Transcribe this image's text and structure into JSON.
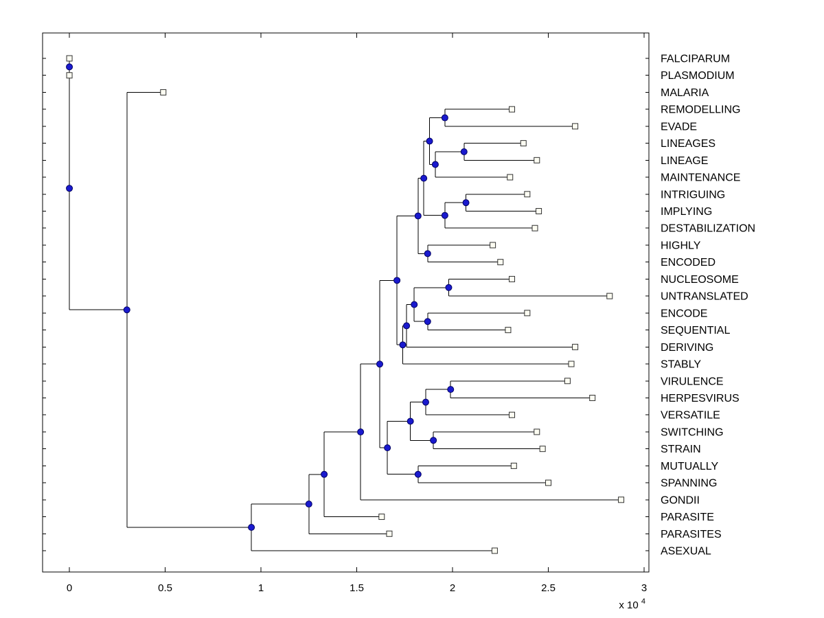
{
  "window": {
    "background": "#ffffff"
  },
  "styles": {
    "background": "#ffffff",
    "branch_line": "#000000",
    "axis_color": "#000000",
    "text_color": "#000000",
    "node_marker_fill": "#1a1ace",
    "node_marker_edge": "#000060",
    "leaf_marker_fill": "#fdfdf2",
    "leaf_marker_edge": "#303030"
  },
  "chart_data": {
    "type": "dendrogram",
    "title": "",
    "subtitle": "",
    "orientation": "root-left-leaves-right",
    "legend": "none",
    "grid": false,
    "x_axis": {
      "limits": [
        -0.14,
        3.025
      ],
      "ticks": [
        0,
        0.5,
        1,
        1.5,
        2,
        2.5,
        3
      ],
      "tick_labels": [
        "0",
        "0.5",
        "1",
        "1.5",
        "2",
        "2.5",
        "3"
      ],
      "exponent_base": "x 10",
      "exponent_power": "4",
      "units_multiplier": 10000
    },
    "leaves": [
      {
        "name": "FALCIPARUM",
        "x": 0.0
      },
      {
        "name": "PLASMODIUM",
        "x": 0.0
      },
      {
        "name": "MALARIA",
        "x": 0.49
      },
      {
        "name": "REMODELLING",
        "x": 2.31
      },
      {
        "name": "EVADE",
        "x": 2.64
      },
      {
        "name": "LINEAGES",
        "x": 2.37
      },
      {
        "name": "LINEAGE",
        "x": 2.44
      },
      {
        "name": "MAINTENANCE",
        "x": 2.3
      },
      {
        "name": "INTRIGUING",
        "x": 2.39
      },
      {
        "name": "IMPLYING",
        "x": 2.45
      },
      {
        "name": "DESTABILIZATION",
        "x": 2.43
      },
      {
        "name": "HIGHLY",
        "x": 2.21
      },
      {
        "name": "ENCODED",
        "x": 2.25
      },
      {
        "name": "NUCLEOSOME",
        "x": 2.31
      },
      {
        "name": "UNTRANSLATED",
        "x": 2.82
      },
      {
        "name": "ENCODE",
        "x": 2.39
      },
      {
        "name": "SEQUENTIAL",
        "x": 2.29
      },
      {
        "name": "DERIVING",
        "x": 2.64
      },
      {
        "name": "STABLY",
        "x": 2.62
      },
      {
        "name": "VIRULENCE",
        "x": 2.6
      },
      {
        "name": "HERPESVIRUS",
        "x": 2.73
      },
      {
        "name": "VERSATILE",
        "x": 2.31
      },
      {
        "name": "SWITCHING",
        "x": 2.44
      },
      {
        "name": "STRAIN",
        "x": 2.47
      },
      {
        "name": "MUTUALLY",
        "x": 2.32
      },
      {
        "name": "SPANNING",
        "x": 2.5
      },
      {
        "name": "GONDII",
        "x": 2.88
      },
      {
        "name": "PARASITE",
        "x": 1.63
      },
      {
        "name": "PARASITES",
        "x": 1.67
      },
      {
        "name": "ASEXUAL",
        "x": 2.22
      }
    ],
    "tree": {
      "x": 0.0,
      "children": [
        {
          "x": 0.0,
          "children": [
            "FALCIPARUM",
            "PLASMODIUM"
          ]
        },
        {
          "x": 0.3,
          "children": [
            "MALARIA",
            {
              "x": 0.95,
              "children": [
                {
                  "x": 1.25,
                  "children": [
                    {
                      "x": 1.33,
                      "children": [
                        {
                          "x": 1.52,
                          "children": [
                            {
                              "x": 1.62,
                              "children": [
                                {
                                  "x": 1.71,
                                  "children": [
                                    {
                                      "x": 1.82,
                                      "children": [
                                        {
                                          "x": 1.85,
                                          "children": [
                                            {
                                              "x": 1.88,
                                              "children": [
                                                {
                                                  "x": 1.96,
                                                  "children": [
                                                    "REMODELLING",
                                                    "EVADE"
                                                  ]
                                                },
                                                {
                                                  "x": 1.91,
                                                  "children": [
                                                    {
                                                      "x": 2.06,
                                                      "children": [
                                                        "LINEAGES",
                                                        "LINEAGE"
                                                      ]
                                                    },
                                                    "MAINTENANCE"
                                                  ]
                                                }
                                              ]
                                            },
                                            {
                                              "x": 1.96,
                                              "children": [
                                                {
                                                  "x": 2.07,
                                                  "children": [
                                                    "INTRIGUING",
                                                    "IMPLYING"
                                                  ]
                                                },
                                                "DESTABILIZATION"
                                              ]
                                            }
                                          ]
                                        },
                                        {
                                          "x": 1.87,
                                          "children": [
                                            "HIGHLY",
                                            "ENCODED"
                                          ]
                                        }
                                      ]
                                    },
                                    {
                                      "x": 1.74,
                                      "children": [
                                        {
                                          "x": 1.76,
                                          "children": [
                                            {
                                              "x": 1.8,
                                              "children": [
                                                {
                                                  "x": 1.98,
                                                  "children": [
                                                    "NUCLEOSOME",
                                                    "UNTRANSLATED"
                                                  ]
                                                },
                                                {
                                                  "x": 1.87,
                                                  "children": [
                                                    "ENCODE",
                                                    "SEQUENTIAL"
                                                  ]
                                                }
                                              ]
                                            },
                                            "DERIVING"
                                          ]
                                        },
                                        "STABLY"
                                      ]
                                    }
                                  ]
                                },
                                {
                                  "x": 1.66,
                                  "children": [
                                    {
                                      "x": 1.78,
                                      "children": [
                                        {
                                          "x": 1.86,
                                          "children": [
                                            {
                                              "x": 1.99,
                                              "children": [
                                                "VIRULENCE",
                                                "HERPESVIRUS"
                                              ]
                                            },
                                            "VERSATILE"
                                          ]
                                        },
                                        {
                                          "x": 1.9,
                                          "children": [
                                            "SWITCHING",
                                            "STRAIN"
                                          ]
                                        }
                                      ]
                                    },
                                    {
                                      "x": 1.82,
                                      "children": [
                                        "MUTUALLY",
                                        "SPANNING"
                                      ]
                                    }
                                  ]
                                }
                              ]
                            },
                            "GONDII"
                          ]
                        },
                        "PARASITE"
                      ]
                    },
                    "PARASITES"
                  ]
                },
                "ASEXUAL"
              ]
            }
          ]
        }
      ]
    }
  }
}
